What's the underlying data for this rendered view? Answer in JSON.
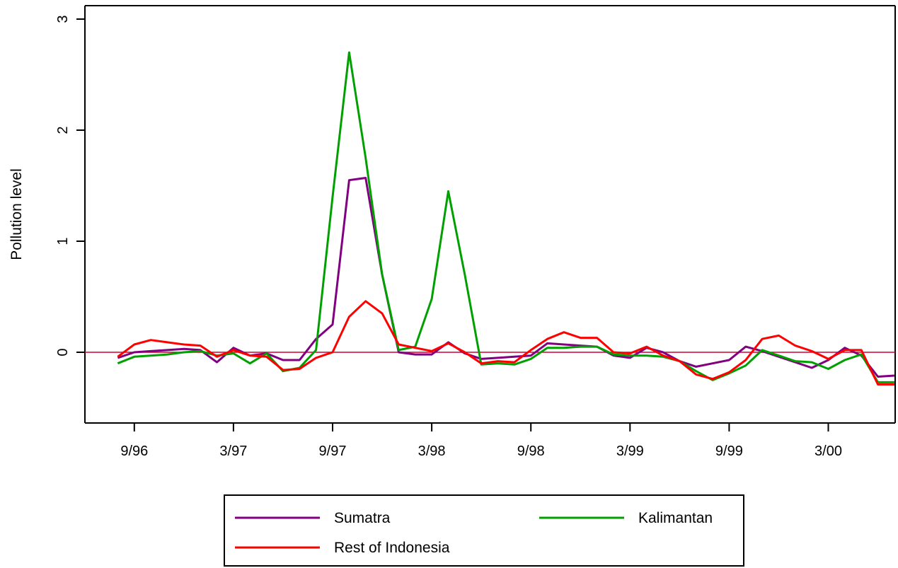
{
  "chart_data": {
    "type": "line",
    "title": "",
    "xlabel": "",
    "ylabel": "Pollution level",
    "ylim": [
      -0.6,
      3.1
    ],
    "y_ticks": [
      0,
      1,
      2,
      3
    ],
    "x_tick_labels": [
      "9/96",
      "3/97",
      "9/97",
      "3/98",
      "9/98",
      "3/99",
      "9/99",
      "3/00"
    ],
    "x_tick_months": [
      0,
      6,
      12,
      18,
      24,
      30,
      36,
      42
    ],
    "x_months": [
      -1,
      0,
      1,
      2,
      3,
      4,
      5,
      6,
      7,
      8,
      9,
      10,
      11,
      12,
      13,
      14,
      15,
      16,
      17,
      18,
      19,
      20,
      21,
      22,
      23,
      24,
      25,
      26,
      27,
      28,
      29,
      30,
      31,
      32,
      33,
      34,
      35,
      36,
      37,
      38,
      39,
      40,
      41,
      42,
      43,
      44,
      45,
      46
    ],
    "reference_line": {
      "y": 0,
      "color": "#cc0033"
    },
    "series": [
      {
        "name": "Sumatra",
        "color": "#800080",
        "values": [
          -0.05,
          0.0,
          0.01,
          0.02,
          0.03,
          0.02,
          -0.09,
          0.04,
          -0.03,
          -0.01,
          -0.07,
          -0.07,
          0.12,
          0.25,
          1.55,
          1.57,
          0.7,
          0.0,
          -0.02,
          -0.02,
          0.09,
          -0.01,
          -0.06,
          -0.05,
          -0.04,
          -0.03,
          0.08,
          0.07,
          0.06,
          0.05,
          -0.03,
          -0.05,
          0.04,
          0.0,
          -0.08,
          -0.13,
          -0.1,
          -0.07,
          0.05,
          0.01,
          -0.04,
          -0.09,
          -0.14,
          -0.07,
          0.04,
          -0.03,
          -0.22,
          -0.21
        ]
      },
      {
        "name": "Kalimantan",
        "color": "#00a000",
        "values": [
          -0.1,
          -0.04,
          -0.03,
          -0.02,
          0.0,
          0.01,
          -0.03,
          -0.01,
          -0.1,
          -0.01,
          -0.17,
          -0.14,
          0.02,
          1.4,
          2.7,
          1.75,
          0.7,
          0.02,
          0.05,
          0.48,
          1.45,
          0.7,
          -0.11,
          -0.1,
          -0.11,
          -0.06,
          0.04,
          0.04,
          0.05,
          0.05,
          -0.02,
          -0.03,
          -0.03,
          -0.04,
          -0.08,
          -0.17,
          -0.25,
          -0.19,
          -0.12,
          0.02,
          -0.03,
          -0.08,
          -0.09,
          -0.15,
          -0.07,
          -0.02,
          -0.27,
          -0.27
        ]
      },
      {
        "name": "Rest of Indonesia",
        "color": "#ff0000",
        "values": [
          -0.04,
          0.07,
          0.11,
          0.09,
          0.07,
          0.06,
          -0.04,
          0.02,
          -0.03,
          -0.04,
          -0.16,
          -0.15,
          -0.05,
          0.0,
          0.32,
          0.46,
          0.35,
          0.07,
          0.04,
          0.01,
          0.08,
          0.0,
          -0.1,
          -0.08,
          -0.09,
          0.02,
          0.12,
          0.18,
          0.13,
          0.13,
          0.0,
          -0.01,
          0.05,
          -0.03,
          -0.08,
          -0.2,
          -0.24,
          -0.18,
          -0.07,
          0.12,
          0.15,
          0.06,
          0.01,
          -0.06,
          0.02,
          0.02,
          -0.29,
          -0.29
        ]
      }
    ],
    "legend_position": "bottom"
  }
}
